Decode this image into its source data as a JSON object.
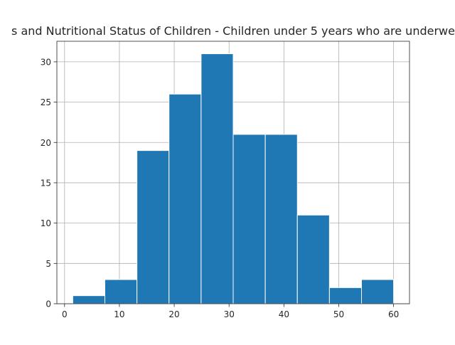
{
  "chart_data": {
    "type": "bar",
    "title": "s and Nutritional Status of Children - Children under 5 years who are underwe",
    "xlabel": "",
    "ylabel": "",
    "bins": [
      {
        "x0": 1.5,
        "x1": 7.35,
        "count": 1
      },
      {
        "x0": 7.35,
        "x1": 13.2,
        "count": 3
      },
      {
        "x0": 13.2,
        "x1": 19.05,
        "count": 19
      },
      {
        "x0": 19.05,
        "x1": 24.9,
        "count": 26
      },
      {
        "x0": 24.9,
        "x1": 30.75,
        "count": 31
      },
      {
        "x0": 30.75,
        "x1": 36.6,
        "count": 21
      },
      {
        "x0": 36.6,
        "x1": 42.45,
        "count": 21
      },
      {
        "x0": 42.45,
        "x1": 48.3,
        "count": 11
      },
      {
        "x0": 48.3,
        "x1": 54.15,
        "count": 2
      },
      {
        "x0": 54.15,
        "x1": 60.0,
        "count": 3
      }
    ],
    "xlim": [
      -1.4,
      62.9
    ],
    "ylim": [
      0,
      32.55
    ],
    "xticks": [
      0,
      10,
      20,
      30,
      40,
      50,
      60
    ],
    "yticks": [
      0,
      5,
      10,
      15,
      20,
      25,
      30
    ],
    "grid": true,
    "bar_color": "#1f77b4",
    "bar_edge_color": "#ffffff",
    "grid_color": "#b0b0b0"
  }
}
